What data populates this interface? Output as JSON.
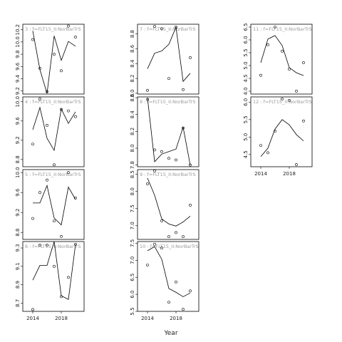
{
  "xlabel": "Year",
  "chart_data": [
    {
      "type": "line",
      "title": "3 : f=FLT15_II:NorBarTrS",
      "x": [
        2014,
        2015,
        2016,
        2017,
        2018,
        2019,
        2020
      ],
      "points": [
        10.04,
        9.57,
        9.19,
        9.8,
        9.53,
        10.26,
        10.08
      ],
      "fitted": [
        10.18,
        9.55,
        9.16,
        10.1,
        9.7,
        10.01,
        9.93
      ],
      "xlim": [
        2012.6,
        2021.2
      ],
      "ylim": [
        9.15,
        10.29
      ],
      "yticks": [
        9.2,
        9.4,
        9.6,
        9.8,
        {
          "value": 10.0,
          "label": "10.0"
        },
        10.2
      ]
    },
    {
      "type": "line",
      "title": "4 : f=FLT15_II:NorBarTrS",
      "x": [
        2014,
        2015,
        2016,
        2017,
        2018,
        2019,
        2020
      ],
      "points": [
        9.12,
        10.06,
        9.51,
        8.69,
        9.84,
        9.81,
        9.69
      ],
      "fitted": [
        9.42,
        9.88,
        9.24,
        8.99,
        9.85,
        9.55,
        9.79
      ],
      "xlim": [
        2012.6,
        2021.2
      ],
      "ylim": [
        8.65,
        10.1
      ],
      "yticks": [
        8.8,
        9.2,
        9.6,
        {
          "value": 10.0,
          "label": "10.0"
        }
      ]
    },
    {
      "type": "line",
      "title": "5 : f=FLT15_II:NorBarTrS",
      "x": [
        2014,
        2015,
        2016,
        2017,
        2018,
        2019,
        2020
      ],
      "points": [
        9.08,
        9.6,
        9.85,
        9.03,
        8.72,
        10.0,
        9.49
      ],
      "fitted": [
        9.39,
        9.39,
        9.74,
        9.09,
        8.95,
        9.71,
        9.46
      ],
      "xlim": [
        2012.6,
        2021.2
      ],
      "ylim": [
        8.66,
        10.06
      ],
      "yticks": [
        8.8,
        9.2,
        9.6,
        {
          "value": 10.0,
          "label": "10.0"
        }
      ]
    },
    {
      "type": "line",
      "title": "6 : f=FLT15_II:NorBarTrS",
      "x": [
        2014,
        2015,
        2016,
        2017,
        2018,
        2019,
        2020
      ],
      "points": [
        8.63,
        9.33,
        9.33,
        9.1,
        8.77,
        8.98,
        9.34
      ],
      "fitted": [
        8.95,
        9.11,
        9.11,
        9.37,
        8.78,
        8.74,
        9.34
      ],
      "xlim": [
        2012.6,
        2021.2
      ],
      "ylim": [
        8.61,
        9.37
      ],
      "yticks": [
        8.7,
        8.9,
        9.1,
        9.3
      ],
      "xticks": [
        2014,
        2018
      ]
    },
    {
      "type": "line",
      "title": "7 : f=FLT15_II:NorBarTrS",
      "x": [
        2014,
        2015,
        2016,
        2017,
        2018,
        2019,
        2020
      ],
      "points": [
        8.04,
        8.9,
        8.87,
        8.2,
        8.89,
        8.05,
        8.48
      ],
      "fitted": [
        8.33,
        8.54,
        8.57,
        8.66,
        8.89,
        8.16,
        8.27
      ],
      "xlim": [
        2012.6,
        2021.2
      ],
      "ylim": [
        7.99,
        8.93
      ],
      "yticks": [
        {
          "value": 8.0,
          "label": "8.0"
        },
        8.2,
        8.4,
        8.6,
        8.8
      ]
    },
    {
      "type": "line",
      "title": "8 : f=FLT15_II:NorBarTrS",
      "x": [
        2014,
        2015,
        2016,
        2017,
        2018,
        2019,
        2020
      ],
      "points": [
        8.58,
        7.98,
        7.96,
        7.88,
        7.86,
        8.24,
        7.8
      ],
      "fitted": [
        8.6,
        7.84,
        7.93,
        7.96,
        7.99,
        8.25,
        7.8
      ],
      "xlim": [
        2012.6,
        2021.2
      ],
      "ylim": [
        7.78,
        8.61
      ],
      "yticks": [
        7.8,
        {
          "value": 8.0,
          "label": "8.0"
        },
        8.2,
        8.4,
        8.6
      ]
    },
    {
      "type": "line",
      "title": "9 : f=FLT15_II:NorBarTrS",
      "x": [
        2014,
        2015,
        2016,
        2017,
        2018,
        2019,
        2020
      ],
      "points": [
        8.22,
        8.6,
        7.14,
        6.68,
        6.8,
        6.68,
        7.6
      ],
      "fitted": [
        8.39,
        7.89,
        7.2,
        7.05,
        6.99,
        7.11,
        7.28
      ],
      "xlim": [
        2012.6,
        2021.2
      ],
      "ylim": [
        6.6,
        8.64
      ],
      "yticks": [
        {
          "value": 7.0,
          "label": "7.0"
        },
        7.5,
        {
          "value": 8.0,
          "label": "8.0"
        },
        8.5
      ]
    },
    {
      "type": "line",
      "title": "10 : f=FLT15_II:NorBarTrS",
      "x": [
        2014,
        2015,
        2016,
        2017,
        2018,
        2019,
        2020
      ],
      "points": [
        6.86,
        7.47,
        7.36,
        5.77,
        6.36,
        5.56,
        6.1
      ],
      "fitted": [
        7.28,
        7.4,
        7.03,
        6.17,
        6.06,
        5.93,
        6.04
      ],
      "xlim": [
        2012.6,
        2021.2
      ],
      "ylim": [
        5.5,
        7.55
      ],
      "yticks": [
        5.5,
        {
          "value": 6.0,
          "label": "6.0"
        },
        6.5,
        {
          "value": 7.0,
          "label": "7.0"
        },
        7.5
      ],
      "xticks": [
        2014,
        2018
      ]
    },
    {
      "type": "line",
      "title": "11 : f=FLT15_II:NorBarTrS",
      "x": [
        2014,
        2015,
        2016,
        2017,
        2018,
        2019,
        2020
      ],
      "points": [
        4.62,
        5.81,
        6.5,
        5.56,
        4.86,
        4.0,
        5.11
      ],
      "fitted": [
        5.11,
        6.03,
        6.17,
        5.78,
        4.92,
        4.72,
        4.61
      ],
      "xlim": [
        2012.6,
        2021.2
      ],
      "ylim": [
        3.89,
        6.61
      ],
      "yticks": [
        {
          "value": 4.0,
          "label": "4.0"
        },
        4.5,
        {
          "value": 5.0,
          "label": "5.0"
        },
        5.5,
        {
          "value": 6.0,
          "label": "6.0"
        },
        6.5
      ]
    },
    {
      "type": "line",
      "title": "12 : f=FLT15_II:NorBarTrS",
      "x": [
        2014,
        2015,
        2016,
        2017,
        2018,
        2019,
        2020
      ],
      "points": [
        4.76,
        4.55,
        5.17,
        6.09,
        6.05,
        4.21,
        5.46
      ],
      "fitted": [
        4.44,
        4.68,
        5.23,
        5.5,
        5.35,
        5.07,
        4.89
      ],
      "xlim": [
        2012.6,
        2021.2
      ],
      "ylim": [
        4.15,
        6.15
      ],
      "yticks": [
        4.5,
        {
          "value": 5.0,
          "label": "5.0"
        },
        5.5,
        {
          "value": 6.0,
          "label": "6.0"
        }
      ],
      "xticks": [
        2014,
        2018
      ]
    }
  ]
}
